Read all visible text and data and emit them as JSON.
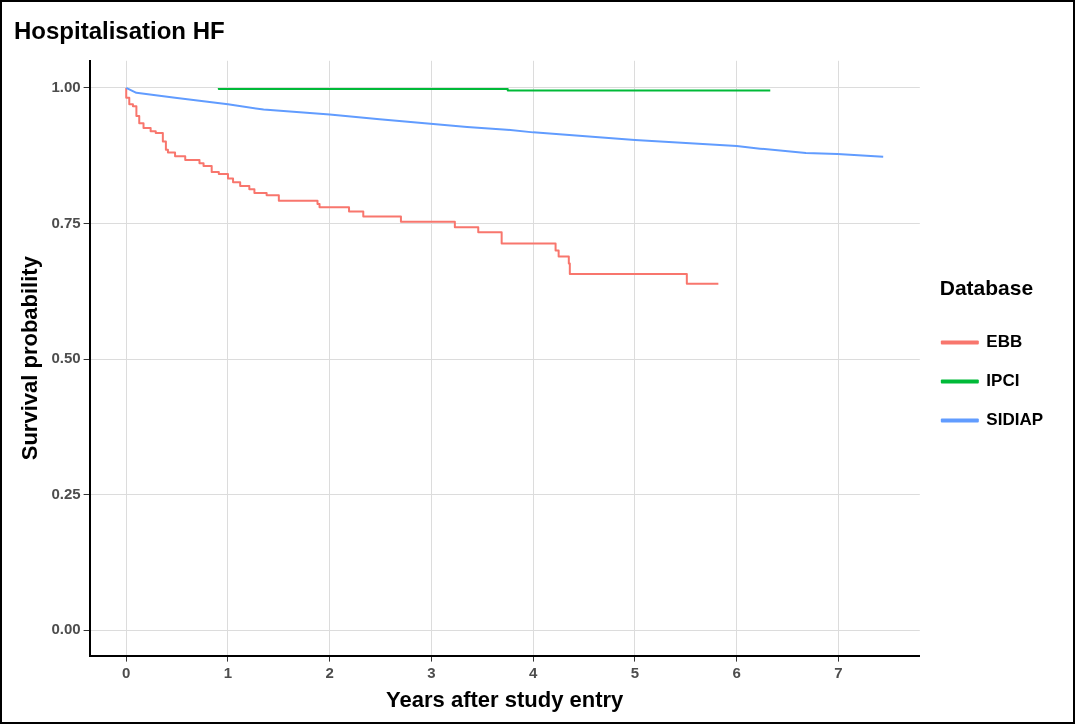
{
  "chart_data": {
    "type": "step",
    "title": "Hospitalisation HF",
    "xlabel": "Years after study entry",
    "ylabel": "Survival probability",
    "legend_title": "Database",
    "legend": "right",
    "grid": true,
    "marker": "none",
    "line_style": "solid",
    "xlim": [
      -0.36,
      7.8
    ],
    "xticks": [
      0,
      1,
      2,
      3,
      4,
      5,
      6,
      7
    ],
    "ylim": [
      -0.047,
      1.05
    ],
    "yticks": [
      {
        "value": 0,
        "label": "0.00"
      },
      {
        "value": 0.25,
        "label": "0.25"
      },
      {
        "value": 0.5,
        "label": "0.50"
      },
      {
        "value": 0.75,
        "label": "0.75"
      },
      {
        "value": 1,
        "label": "1.00"
      }
    ],
    "series": [
      {
        "name": "EBB",
        "color": "#f8766d",
        "x": [
          0,
          0.03,
          0.066,
          0.1,
          0.128,
          0.17,
          0.24,
          0.29,
          0.36,
          0.39,
          0.41,
          0.48,
          0.58,
          0.72,
          0.76,
          0.84,
          0.91,
          1.0,
          1.05,
          1.12,
          1.21,
          1.26,
          1.38,
          1.5,
          1.88,
          1.9,
          2.19,
          2.33,
          2.7,
          3.23,
          3.46,
          3.69,
          4.22,
          4.25,
          4.35,
          4.36,
          5.51,
          5.82
        ],
        "values": [
          1.0,
          0.982,
          0.97,
          0.966,
          0.948,
          0.935,
          0.926,
          0.92,
          0.917,
          0.901,
          0.886,
          0.881,
          0.874,
          0.867,
          0.861,
          0.856,
          0.845,
          0.841,
          0.833,
          0.826,
          0.819,
          0.813,
          0.806,
          0.802,
          0.792,
          0.786,
          0.78,
          0.772,
          0.763,
          0.753,
          0.743,
          0.734,
          0.713,
          0.7,
          0.689,
          0.676,
          0.657,
          0.639
        ]
      },
      {
        "name": "IPCI",
        "color": "#00ba38",
        "x": [
          0.91,
          3.75,
          4.69,
          6.33
        ],
        "values": [
          1.0,
          0.998,
          0.995,
          0.995
        ]
      },
      {
        "name": "SIDIAP",
        "type": "line",
        "color": "#619cff",
        "x": [
          0,
          0.1,
          0.48,
          1.0,
          1.35,
          2.0,
          2.49,
          2.99,
          3.35,
          3.74,
          4.0,
          5.0,
          6.0,
          6.23,
          6.68,
          6.99,
          7.44
        ],
        "values": [
          1.0,
          0.991,
          0.982,
          0.97,
          0.96,
          0.951,
          0.942,
          0.934,
          0.928,
          0.923,
          0.918,
          0.904,
          0.893,
          0.888,
          0.88,
          0.878,
          0.873
        ]
      }
    ]
  }
}
